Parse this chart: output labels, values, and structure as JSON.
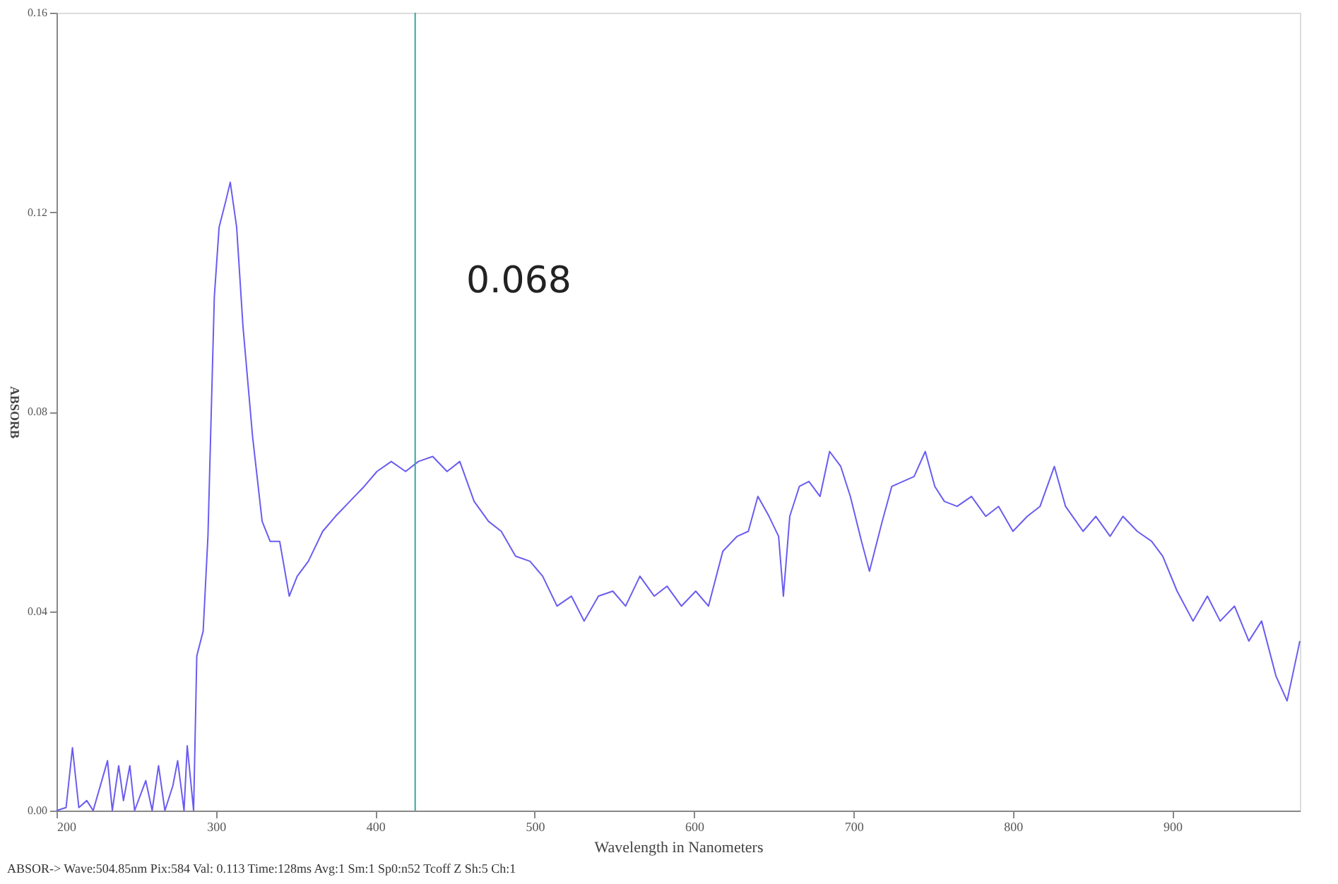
{
  "chart_data": {
    "type": "line",
    "xlabel": "Wavelength in Nanometers",
    "ylabel": "ABSORB",
    "xlim": [
      200,
      980
    ],
    "xticks": [
      200,
      300,
      400,
      500,
      600,
      700,
      800,
      900
    ],
    "ylim": [
      0,
      0.16
    ],
    "yticks": [
      {
        "value": 0,
        "label": "0.00"
      },
      0.04,
      0.08,
      0.12,
      0.16
    ],
    "grid": false,
    "marker": "none",
    "line_style": "solid",
    "series": [
      {
        "color": "#6a5cf0",
        "x": [
          200,
          206,
          210,
          214,
          219,
          223,
          232,
          235,
          239,
          242,
          246,
          249,
          256,
          260,
          264,
          268,
          273,
          276,
          280,
          282,
          286,
          288,
          292,
          295,
          299,
          302,
          306,
          309,
          313,
          317,
          323,
          329,
          334,
          340,
          346,
          351,
          358,
          367,
          375,
          384,
          393,
          401,
          410,
          419,
          427,
          436,
          445,
          453,
          462,
          471,
          479,
          488,
          497,
          505,
          514,
          523,
          531,
          540,
          549,
          557,
          566,
          575,
          583,
          592,
          601,
          609,
          618,
          627,
          634,
          640,
          647,
          653,
          656,
          660,
          666,
          672,
          679,
          685,
          692,
          698,
          705,
          710,
          718,
          724,
          731,
          738,
          745,
          751,
          757,
          765,
          774,
          783,
          791,
          800,
          809,
          817,
          826,
          833,
          844,
          852,
          861,
          869,
          878,
          887,
          894,
          903,
          913,
          922,
          930,
          939,
          948,
          956,
          965,
          972,
          980
        ],
        "values": [
          0,
          0.0006,
          0.0126,
          0.0006,
          0.002,
          0,
          0.01,
          0,
          0.009,
          0.002,
          0.009,
          0,
          0.006,
          0,
          0.009,
          0,
          0.005,
          0.01,
          0,
          0.013,
          0,
          0.031,
          0.036,
          0.055,
          0.103,
          0.117,
          0.122,
          0.126,
          0.117,
          0.097,
          0.075,
          0.058,
          0.054,
          0.054,
          0.043,
          0.047,
          0.05,
          0.056,
          0.059,
          0.062,
          0.065,
          0.068,
          0.07,
          0.068,
          0.07,
          0.071,
          0.068,
          0.07,
          0.062,
          0.058,
          0.056,
          0.051,
          0.05,
          0.047,
          0.041,
          0.043,
          0.038,
          0.043,
          0.044,
          0.041,
          0.047,
          0.043,
          0.045,
          0.041,
          0.044,
          0.041,
          0.052,
          0.055,
          0.056,
          0.063,
          0.059,
          0.055,
          0.043,
          0.059,
          0.065,
          0.066,
          0.063,
          0.072,
          0.069,
          0.063,
          0.054,
          0.048,
          0.058,
          0.065,
          0.066,
          0.067,
          0.072,
          0.065,
          0.062,
          0.061,
          0.063,
          0.059,
          0.061,
          0.056,
          0.059,
          0.061,
          0.069,
          0.061,
          0.056,
          0.059,
          0.055,
          0.059,
          0.056,
          0.054,
          0.051,
          0.044,
          0.038,
          0.043,
          0.038,
          0.041,
          0.034,
          0.038,
          0.027,
          0.022,
          0.034
        ]
      }
    ],
    "ref_lines": [
      {
        "axis": "x",
        "value": 425,
        "color": "#3aa59b"
      }
    ],
    "annotations": [
      "ABSOR-> Wave:504.85nm Pix:584 Val: 0.113 Time:128ms Avg:1 Sm:1 Sp0:n52 Tcoff Z Sh:5 Ch:1",
      "0.068"
    ]
  }
}
